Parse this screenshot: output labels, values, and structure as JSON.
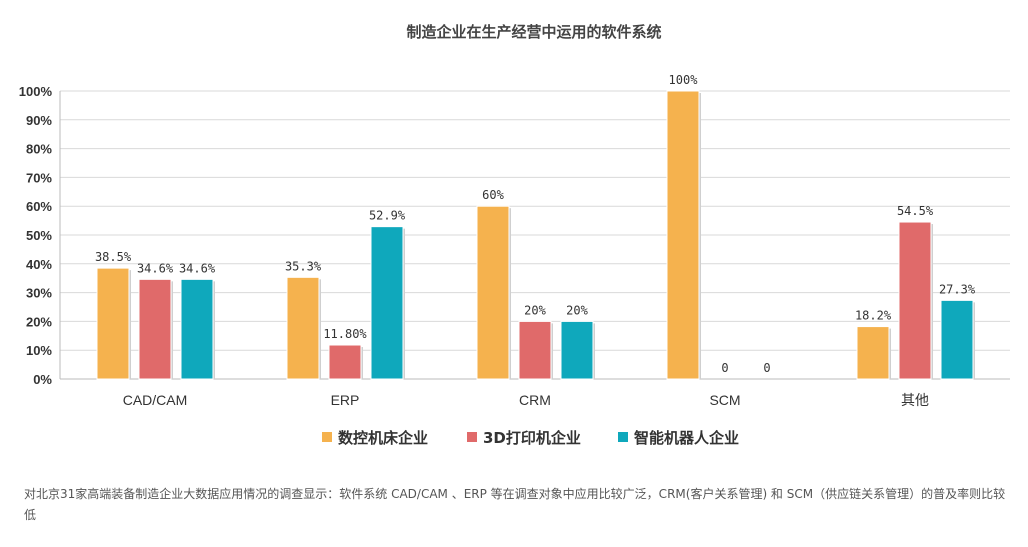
{
  "chart_data": {
    "type": "bar",
    "title": "制造企业在生产经营中运用的软件系统",
    "categories": [
      "CAD/CAM",
      "ERP",
      "CRM",
      "SCM",
      "其他"
    ],
    "series": [
      {
        "name": "数控机床企业",
        "values": [
          38.5,
          35.3,
          60,
          100,
          18.2
        ],
        "labels": [
          "38.5%",
          "35.3%",
          "60%",
          "100%",
          "18.2%"
        ],
        "color": "#F5B24E"
      },
      {
        "name": "3D打印机企业",
        "values": [
          34.6,
          11.8,
          20,
          0,
          54.5
        ],
        "labels": [
          "34.6%",
          "11.80%",
          "20%",
          "0",
          "54.5%"
        ],
        "color": "#E06A6A"
      },
      {
        "name": "智能机器人企业",
        "values": [
          34.6,
          52.9,
          20,
          0,
          27.3
        ],
        "labels": [
          "34.6%",
          "52.9%",
          "20%",
          "0",
          "27.3%"
        ],
        "color": "#0FA8BC"
      }
    ],
    "yticks": [
      "0%",
      "10%",
      "20%",
      "30%",
      "40%",
      "50%",
      "60%",
      "70%",
      "80%",
      "90%",
      "100%"
    ],
    "ylim": [
      0,
      100
    ],
    "grid": true,
    "legend": "bottom"
  },
  "note": "对北京31家高端装备制造企业大数据应用情况的调查显示：软件系统 CAD/CAM 、ERP 等在调查对象中应用比较广泛，CRM(客户关系管理) 和 SCM（供应链关系管理）的普及率则比较低"
}
